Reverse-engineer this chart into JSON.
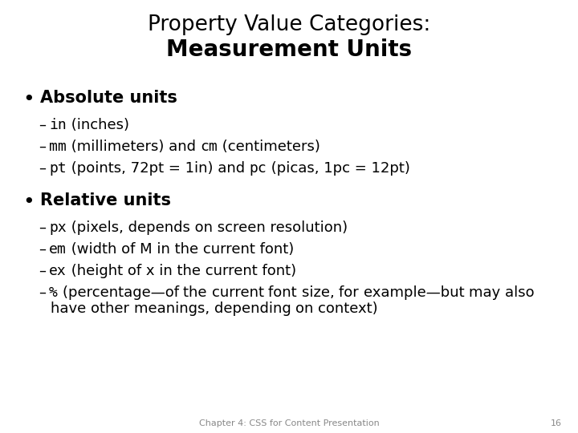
{
  "title_line1": "Property Value Categories:",
  "title_line2": "Measurement Units",
  "background_color": "#ffffff",
  "text_color": "#000000",
  "footer_text": "Chapter 4: CSS for Content Presentation",
  "footer_page": "16",
  "bullet1": "Absolute units",
  "bullet2": "Relative units",
  "lines": [
    {
      "type": "bullet",
      "text": "Absolute units"
    },
    {
      "type": "sub",
      "parts": [
        [
          "in",
          true
        ],
        [
          " (inches)",
          false
        ]
      ]
    },
    {
      "type": "sub",
      "parts": [
        [
          "mm",
          true
        ],
        [
          " (millimeters) and ",
          false
        ],
        [
          "cm",
          true
        ],
        [
          " (centimeters)",
          false
        ]
      ]
    },
    {
      "type": "sub",
      "parts": [
        [
          "pt",
          true
        ],
        [
          " (points, 72pt = 1in) and ",
          false
        ],
        [
          "pc",
          true
        ],
        [
          " (picas, 1pc = 12pt)",
          false
        ]
      ]
    },
    {
      "type": "bullet",
      "text": "Relative units"
    },
    {
      "type": "sub",
      "parts": [
        [
          "px",
          true
        ],
        [
          " (pixels, depends on screen resolution)",
          false
        ]
      ]
    },
    {
      "type": "sub",
      "parts": [
        [
          "em",
          true
        ],
        [
          " (width of M in the current font)",
          false
        ]
      ]
    },
    {
      "type": "sub",
      "parts": [
        [
          "ex",
          true
        ],
        [
          " (height of x in the current font)",
          false
        ]
      ]
    },
    {
      "type": "sub_wrap",
      "parts": [
        [
          "%",
          true
        ],
        [
          " (percentage—of the current font size, for example—but may also have other meanings, depending on context)",
          false
        ]
      ]
    }
  ]
}
